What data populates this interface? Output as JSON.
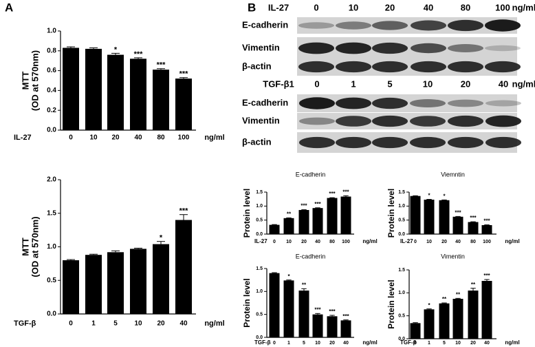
{
  "panel_labels": [
    "A",
    "B"
  ],
  "blots": [
    {
      "treatment": "IL-27",
      "doses": [
        "0",
        "10",
        "20",
        "40",
        "80",
        "100"
      ],
      "unit": "ng/ml",
      "rows": [
        "E-cadherin",
        "Vimentin",
        "β-actin"
      ]
    },
    {
      "treatment": "TGF-β1",
      "doses": [
        "0",
        "1",
        "5",
        "10",
        "20",
        "40"
      ],
      "unit": "ng/ml",
      "rows": [
        "E-cadherin",
        "Vimentin",
        "β-actin"
      ]
    }
  ],
  "chart_data": [
    {
      "type": "bar",
      "ylabel": [
        "MTT",
        "(OD at 570nm)"
      ],
      "x_prefix": "IL-27",
      "x_unit": "ng/ml",
      "categories": [
        "0",
        "10",
        "20",
        "40",
        "80",
        "100"
      ],
      "values": [
        0.83,
        0.82,
        0.76,
        0.72,
        0.61,
        0.52
      ],
      "errors": [
        0.01,
        0.01,
        0.015,
        0.01,
        0.01,
        0.01
      ],
      "annotations": [
        null,
        null,
        "*",
        "***",
        "***",
        "***"
      ],
      "color": "#000000",
      "ylim": [
        0,
        1.0
      ],
      "yticks": [
        {
          "value": 0,
          "label": "0.0"
        },
        0.2,
        0.4,
        0.6,
        0.8,
        {
          "value": 1.0,
          "label": "1.0"
        }
      ]
    },
    {
      "type": "bar",
      "ylabel": [
        "MTT",
        "(OD at 570nm)"
      ],
      "x_prefix": "TGF-β",
      "x_unit": "ng/ml",
      "categories": [
        "0",
        "1",
        "5",
        "10",
        "20",
        "40"
      ],
      "values": [
        0.8,
        0.88,
        0.92,
        0.97,
        1.04,
        1.4
      ],
      "errors": [
        0.01,
        0.01,
        0.02,
        0.01,
        0.04,
        0.08
      ],
      "annotations": [
        null,
        null,
        null,
        null,
        "*",
        "***"
      ],
      "color": "#000000",
      "ylim": [
        0,
        2.0
      ],
      "yticks": [
        {
          "value": 0,
          "label": "0.0"
        },
        0.5,
        {
          "value": 1.0,
          "label": "1.0"
        },
        1.5,
        {
          "value": 2.0,
          "label": "2.0"
        }
      ]
    },
    {
      "type": "bar",
      "title": "E-cadherin",
      "ylabel": "Protein level",
      "x_prefix": "IL-27",
      "x_unit": "ng/ml",
      "categories": [
        "0",
        "10",
        "20",
        "40",
        "80",
        "100"
      ],
      "values": [
        0.33,
        0.57,
        0.86,
        0.93,
        1.29,
        1.34
      ],
      "errors": [
        0.01,
        0.01,
        0.01,
        0.01,
        0.01,
        0.03
      ],
      "annotations": [
        null,
        "**",
        "***",
        "***",
        "***",
        "***"
      ],
      "color": "#000000",
      "ylim": [
        0,
        1.5
      ],
      "yticks": [
        {
          "value": 0,
          "label": "0.0"
        },
        0.5,
        {
          "value": 1.0,
          "label": "1.0"
        },
        1.5
      ]
    },
    {
      "type": "bar",
      "title": "Viemntin",
      "ylabel": "Protein level",
      "x_prefix": "IL-27",
      "x_unit": "ng/ml",
      "categories": [
        "0",
        "10",
        "20",
        "40",
        "80",
        "100"
      ],
      "values": [
        1.36,
        1.23,
        1.21,
        0.62,
        0.43,
        0.32
      ],
      "errors": [
        0.01,
        0.01,
        0.01,
        0.01,
        0.01,
        0.01
      ],
      "annotations": [
        null,
        "*",
        "*",
        "***",
        "***",
        "***"
      ],
      "color": "#000000",
      "ylim": [
        0,
        1.5
      ],
      "yticks": [
        {
          "value": 0,
          "label": "0.0"
        },
        0.5,
        {
          "value": 1.0,
          "label": "1.0"
        },
        1.5
      ]
    },
    {
      "type": "bar",
      "title": "E-cadherin",
      "ylabel": "Protein level",
      "x_prefix": "TGF-β",
      "x_unit": "ng/ml",
      "categories": [
        "0",
        "1",
        "5",
        "10",
        "20",
        "40"
      ],
      "values": [
        1.4,
        1.24,
        1.02,
        0.5,
        0.46,
        0.37
      ],
      "errors": [
        0.01,
        0.01,
        0.04,
        0.02,
        0.02,
        0.01
      ],
      "annotations": [
        null,
        "*",
        "**",
        "***",
        "***",
        "***"
      ],
      "color": "#000000",
      "ylim": [
        0,
        1.5
      ],
      "yticks": [
        {
          "value": 0,
          "label": "0.0"
        },
        0.5,
        {
          "value": 1.0,
          "label": "1.0"
        },
        1.5
      ]
    },
    {
      "type": "bar",
      "title": "Vimentin",
      "ylabel": "Protein level",
      "x_prefix": "TGF-β",
      "x_unit": "ng/ml",
      "categories": [
        "0",
        "1",
        "5",
        "10",
        "20",
        "40"
      ],
      "values": [
        0.34,
        0.64,
        0.77,
        0.87,
        1.05,
        1.26
      ],
      "errors": [
        0.01,
        0.01,
        0.01,
        0.01,
        0.05,
        0.03
      ],
      "annotations": [
        null,
        "*",
        "**",
        "**",
        "**",
        "***"
      ],
      "color": "#000000",
      "ylim": [
        0,
        1.5
      ],
      "yticks": [
        {
          "value": 0,
          "label": "0.0"
        },
        0.5,
        {
          "value": 1.0,
          "label": "1.0"
        },
        1.5
      ]
    }
  ]
}
